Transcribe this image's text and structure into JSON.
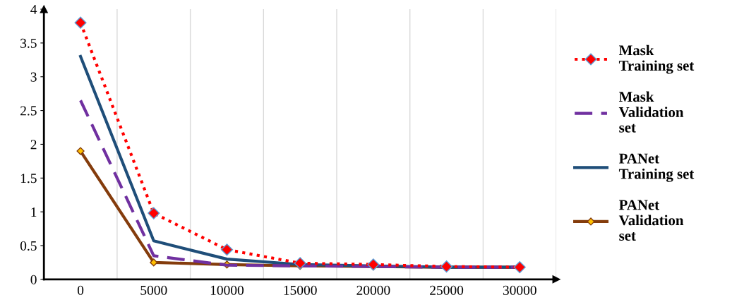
{
  "chart_data": {
    "type": "line",
    "categories": [
      "0",
      "5000",
      "10000",
      "15000",
      "20000",
      "25000",
      "30000"
    ],
    "ylim": [
      0,
      4
    ],
    "yticks": [
      0,
      0.5,
      1,
      1.5,
      2,
      2.5,
      3,
      3.5,
      4
    ],
    "grid": "x",
    "legend": "right",
    "series": [
      {
        "name": "Mask Training set",
        "color": "#ff0000",
        "line_style": "dotted",
        "marker": "diamond",
        "values": [
          3.8,
          0.98,
          0.44,
          0.24,
          0.22,
          0.19,
          0.18
        ]
      },
      {
        "name": "Mask Validation set",
        "color": "#7030a0",
        "line_style": "dashed",
        "marker": "none",
        "values": [
          2.65,
          0.35,
          0.21,
          0.2,
          0.19,
          0.18,
          0.18
        ]
      },
      {
        "name": "PANet Training set",
        "color": "#1f4e79",
        "line_style": "solid",
        "marker": "none",
        "values": [
          3.3,
          0.57,
          0.3,
          0.22,
          0.2,
          0.18,
          0.18
        ]
      },
      {
        "name": "PANet Validation set",
        "color": "#843c0c",
        "line_style": "solid",
        "marker": "diamond",
        "values": [
          1.9,
          0.25,
          0.22,
          0.2,
          0.19,
          0.18,
          0.18
        ]
      }
    ]
  }
}
